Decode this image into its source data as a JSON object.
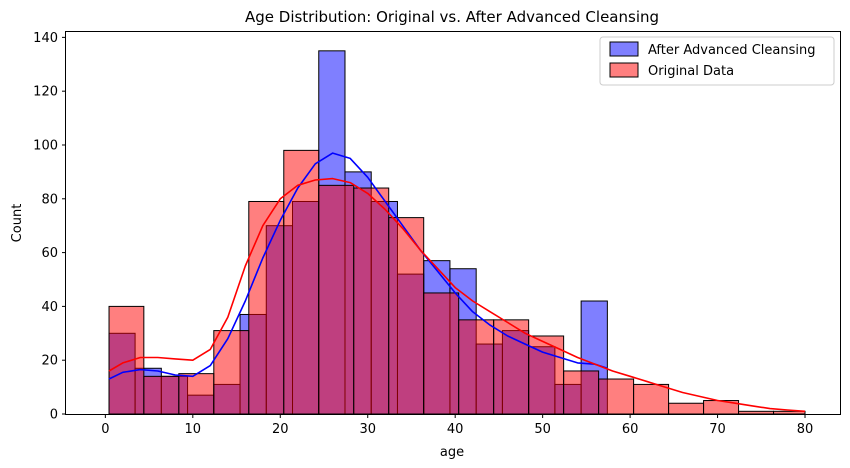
{
  "chart_data": {
    "type": "histogram",
    "title": "Age Distribution: Original vs. After Advanced Cleansing",
    "xlabel": "age",
    "ylabel": "Count",
    "xlim": [
      -4.5,
      84
    ],
    "ylim": [
      0,
      142
    ],
    "x_ticks": [
      0,
      10,
      20,
      30,
      40,
      50,
      60,
      70,
      80
    ],
    "y_ticks": [
      0,
      20,
      40,
      60,
      80,
      100,
      120,
      140
    ],
    "legend_position": "top-right",
    "grid": false,
    "series": [
      {
        "name": "After Advanced Cleansing",
        "color": "#0000ff",
        "bin_edges": [
          0.42,
          3.4,
          6.4,
          9.4,
          12.4,
          15.4,
          18.4,
          21.4,
          24.4,
          27.4,
          30.4,
          33.4,
          36.4,
          39.4,
          42.4,
          45.4,
          48.4,
          51.4,
          54.4,
          57.4
        ],
        "counts": [
          30,
          17,
          14,
          7,
          11,
          37,
          70,
          79,
          135,
          90,
          79,
          52,
          57,
          54,
          26,
          31,
          25,
          11,
          42
        ],
        "kde": [
          [
            0.42,
            13
          ],
          [
            2,
            15.5
          ],
          [
            4,
            16.5
          ],
          [
            6,
            16
          ],
          [
            8,
            14.5
          ],
          [
            10,
            14
          ],
          [
            12,
            18
          ],
          [
            14,
            28
          ],
          [
            16,
            42
          ],
          [
            18,
            58
          ],
          [
            20,
            72
          ],
          [
            22,
            84
          ],
          [
            24,
            93
          ],
          [
            26,
            97
          ],
          [
            28,
            95
          ],
          [
            30,
            88
          ],
          [
            32,
            79
          ],
          [
            34,
            70
          ],
          [
            36,
            61
          ],
          [
            38,
            53
          ],
          [
            40,
            45
          ],
          [
            42,
            38
          ],
          [
            44,
            33
          ],
          [
            46,
            29
          ],
          [
            48,
            26
          ],
          [
            50,
            23
          ],
          [
            52,
            21
          ],
          [
            54,
            19
          ],
          [
            56,
            18.5
          ],
          [
            57.4,
            17
          ]
        ]
      },
      {
        "name": "Original Data",
        "color": "#ff0000",
        "bin_edges": [
          0.42,
          4.4,
          8.4,
          12.4,
          16.4,
          20.4,
          24.4,
          28.4,
          32.4,
          36.4,
          40.4,
          44.4,
          48.4,
          52.4,
          56.4,
          60.4,
          64.4,
          68.4,
          72.4,
          76.4,
          80.0
        ],
        "counts": [
          40,
          14,
          15,
          31,
          79,
          98,
          85,
          84,
          73,
          45,
          35,
          35,
          29,
          16,
          13,
          11,
          4,
          5,
          1,
          1
        ],
        "kde": [
          [
            0.42,
            16
          ],
          [
            2,
            19
          ],
          [
            4,
            21
          ],
          [
            6,
            21
          ],
          [
            8,
            20.5
          ],
          [
            10,
            20
          ],
          [
            12,
            24
          ],
          [
            14,
            36
          ],
          [
            16,
            55
          ],
          [
            18,
            70
          ],
          [
            20,
            80
          ],
          [
            22,
            85
          ],
          [
            24,
            87
          ],
          [
            26,
            87.5
          ],
          [
            28,
            86
          ],
          [
            30,
            82
          ],
          [
            32,
            76
          ],
          [
            34,
            69
          ],
          [
            36,
            61
          ],
          [
            38,
            54
          ],
          [
            40,
            47
          ],
          [
            42,
            42
          ],
          [
            44,
            38
          ],
          [
            46,
            34
          ],
          [
            48,
            30
          ],
          [
            50,
            27
          ],
          [
            52,
            24
          ],
          [
            54,
            21
          ],
          [
            56,
            18.5
          ],
          [
            58,
            16
          ],
          [
            60,
            14
          ],
          [
            62,
            12
          ],
          [
            64,
            10
          ],
          [
            66,
            8
          ],
          [
            68,
            6.5
          ],
          [
            70,
            5
          ],
          [
            72,
            4
          ],
          [
            74,
            3
          ],
          [
            76,
            2
          ],
          [
            78,
            1.5
          ],
          [
            80,
            1
          ]
        ]
      }
    ]
  }
}
